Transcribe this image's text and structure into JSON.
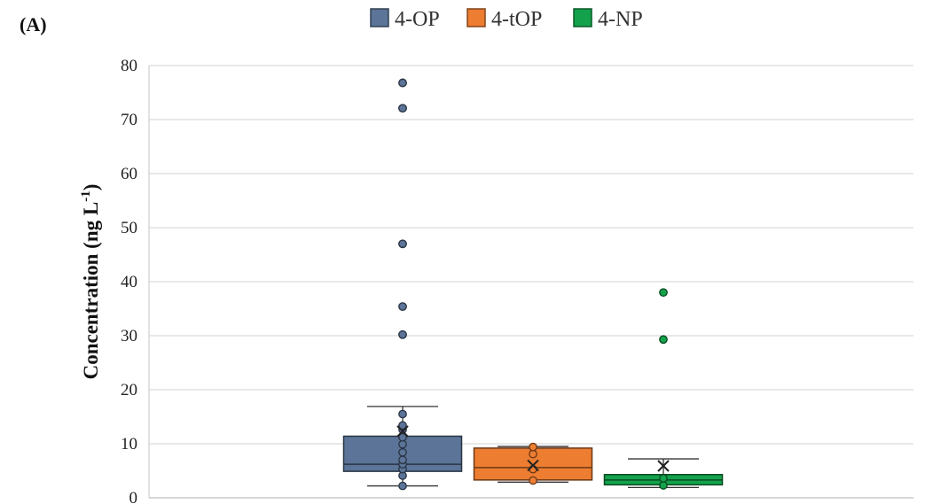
{
  "panel_label": "(A)",
  "chart_data": {
    "type": "box",
    "ylabel": "Concentration (ng L",
    "ylabel_sup": "-1",
    "ylabel_close": ")",
    "ylim": [
      0,
      80
    ],
    "yticks": [
      "0",
      "10",
      "20",
      "30",
      "40",
      "50",
      "60",
      "70",
      "80"
    ],
    "grid": true,
    "legend_position": "top-center",
    "series": [
      {
        "name": "4-OP",
        "color": "#5b7497",
        "whisker_low": 2.2,
        "q1": 4.9,
        "median": 6.2,
        "q3": 11.4,
        "whisker_high": 16.9,
        "mean": 12.3,
        "points": [
          2.2,
          4.1,
          5.3,
          6.2,
          7.0,
          8.4,
          9.9,
          11.2,
          12.6,
          13.4,
          15.5,
          30.2,
          35.4,
          47.0,
          72.1,
          76.8
        ],
        "outliers": [
          30.2,
          35.4,
          47.0,
          72.1,
          76.8
        ]
      },
      {
        "name": "4-tOP",
        "color": "#ed7d31",
        "whisker_low": 2.9,
        "q1": 3.3,
        "median": 5.6,
        "q3": 9.2,
        "whisker_high": 9.5,
        "mean": 6.0,
        "points": [
          3.2,
          5.3,
          8.1,
          9.4
        ],
        "outliers": []
      },
      {
        "name": "4-NP",
        "color": "#13a24b",
        "whisker_low": 1.9,
        "q1": 2.4,
        "median": 3.3,
        "q3": 4.3,
        "whisker_high": 7.2,
        "mean": 5.9,
        "points": [
          2.3,
          3.6
        ],
        "outliers": [
          29.3,
          38.0
        ]
      }
    ]
  }
}
